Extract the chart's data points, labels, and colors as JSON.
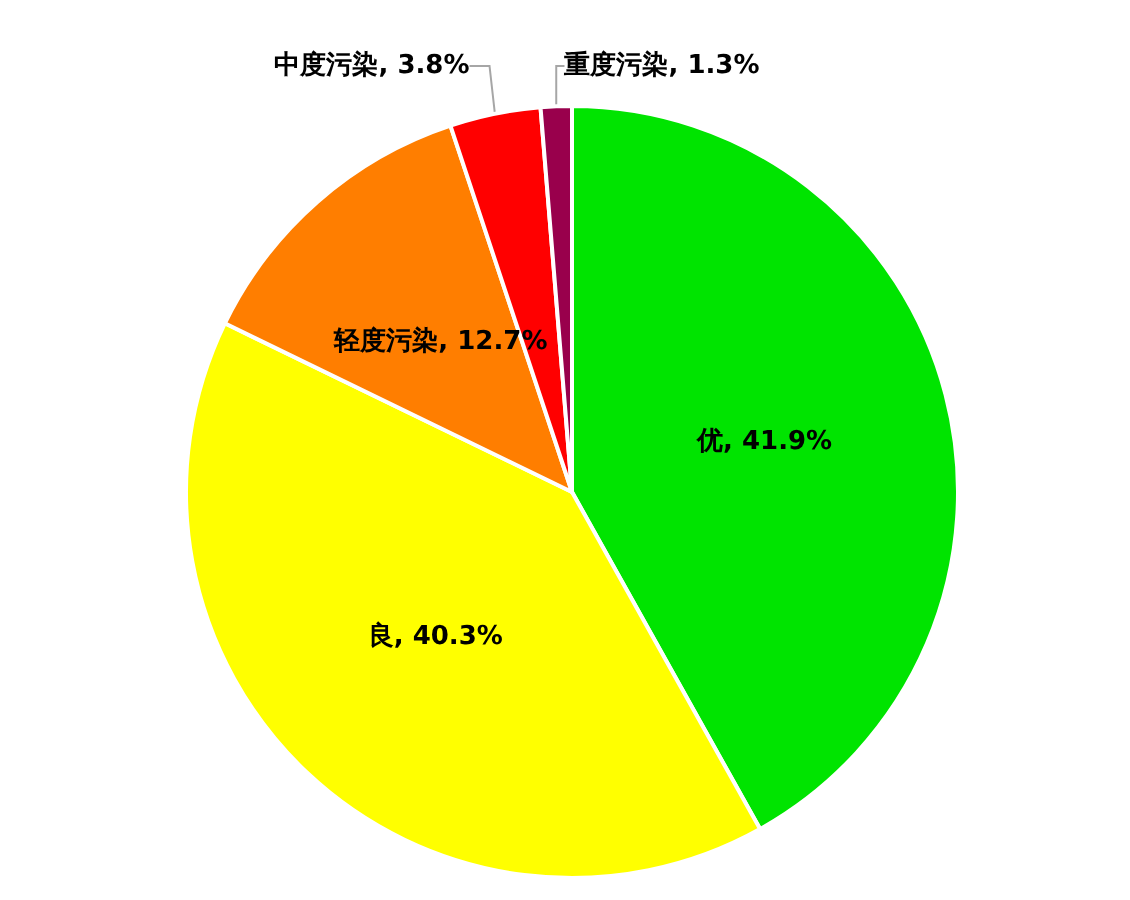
{
  "chart_data": {
    "type": "pie",
    "categories": [
      "优",
      "良",
      "轻度污染",
      "中度污染",
      "重度污染"
    ],
    "values": [
      41.9,
      40.3,
      12.7,
      3.8,
      1.3
    ],
    "value_labels": [
      "41.9%",
      "40.3%",
      "12.7%",
      "3.8%",
      "1.3%"
    ],
    "colors": [
      "#00e400",
      "#ffff00",
      "#ff7e00",
      "#ff0000",
      "#99004c"
    ],
    "legend": false
  }
}
